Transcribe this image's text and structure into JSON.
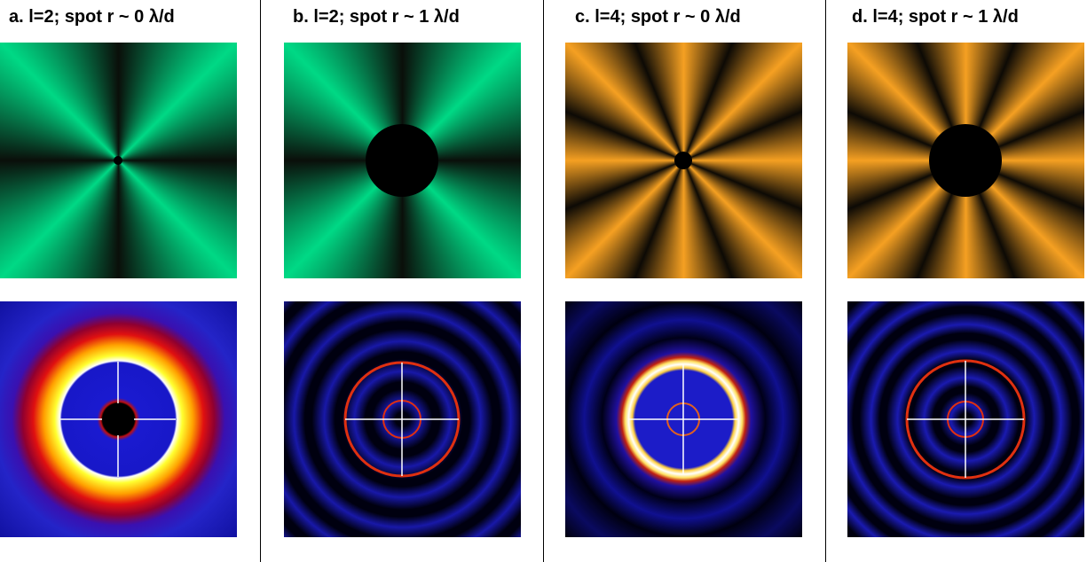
{
  "panels": [
    {
      "title": "a. l=2; spot r ~ 0 λ/d"
    },
    {
      "title": "b. l=2; spot r ~ 1 λ/d"
    },
    {
      "title": "c. l=4; spot r ~ 0 λ/d"
    },
    {
      "title": "d. l=4; spot r ~ 1 λ/d"
    }
  ]
}
